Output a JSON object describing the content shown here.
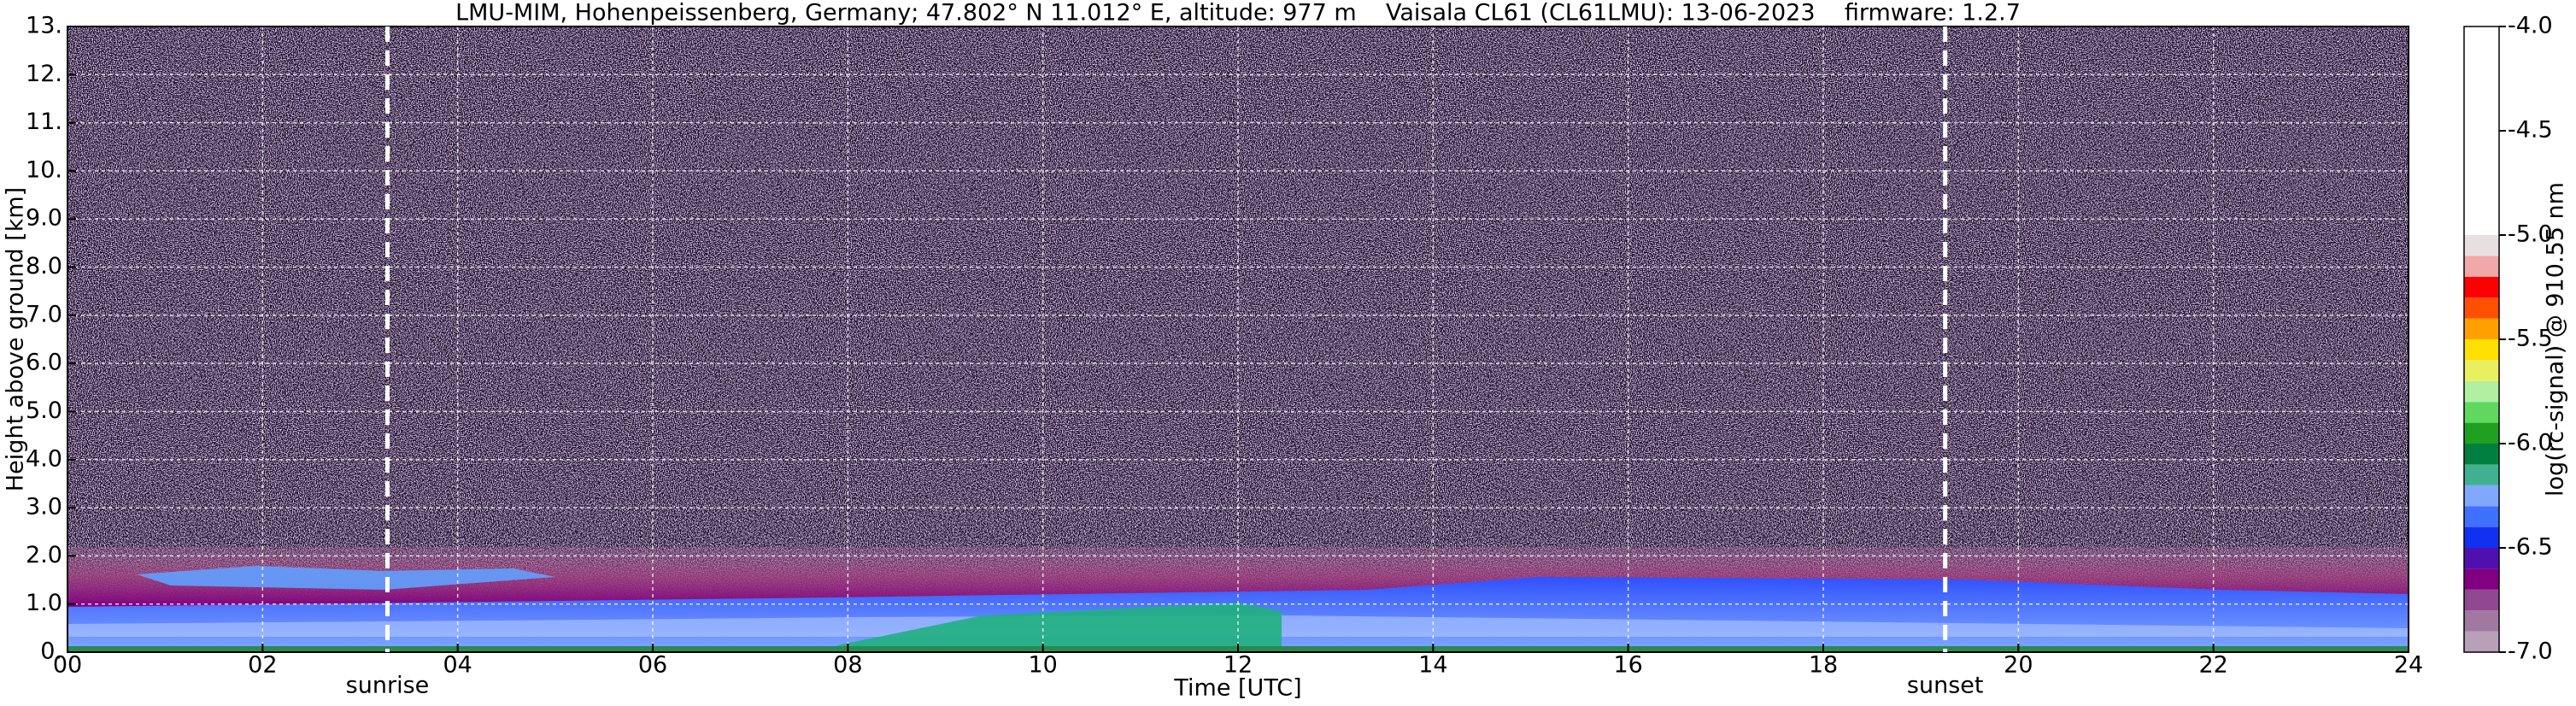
{
  "chart_data": {
    "type": "heatmap",
    "title": "LMU-MIM, Hohenpeissenberg, Germany; 47.802° N 11.012° E, altitude: 977 m    Vaisala CL61 (CL61LMU): 13-06-2023    firmware: 1.2.7",
    "x_label": "Time [UTC]",
    "y_label": "Height above ground [km]",
    "xlim": [
      0,
      24
    ],
    "xticks": [
      {
        "value": 0,
        "label": "00"
      },
      {
        "value": 2,
        "label": "02"
      },
      {
        "value": 4,
        "label": "04"
      },
      {
        "value": 6,
        "label": "06"
      },
      {
        "value": 8,
        "label": "08"
      },
      {
        "value": 10,
        "label": "10"
      },
      {
        "value": 12,
        "label": "12"
      },
      {
        "value": 14,
        "label": "14"
      },
      {
        "value": 16,
        "label": "16"
      },
      {
        "value": 18,
        "label": "18"
      },
      {
        "value": 20,
        "label": "20"
      },
      {
        "value": 22,
        "label": "22"
      },
      {
        "value": 24,
        "label": "24"
      }
    ],
    "ylim": [
      0,
      13
    ],
    "yticks": [
      {
        "value": 0,
        "label": "0."
      },
      {
        "value": 1,
        "label": "1.0"
      },
      {
        "value": 2,
        "label": "2.0"
      },
      {
        "value": 3,
        "label": "3.0"
      },
      {
        "value": 4,
        "label": "4.0"
      },
      {
        "value": 5,
        "label": "5.0"
      },
      {
        "value": 6,
        "label": "6.0"
      },
      {
        "value": 7,
        "label": "7.0"
      },
      {
        "value": 8,
        "label": "8.0"
      },
      {
        "value": 9,
        "label": "9.0"
      },
      {
        "value": 10,
        "label": "10."
      },
      {
        "value": 11,
        "label": "11."
      },
      {
        "value": 12,
        "label": "12."
      },
      {
        "value": 13,
        "label": "13."
      }
    ],
    "grid": true,
    "annotations": [
      {
        "text": "sunrise",
        "x": 3.28
      },
      {
        "text": "sunset",
        "x": 19.25
      }
    ],
    "colorbar": {
      "label": "log(rc-signal) @ 910.55 nm",
      "lim": [
        -7,
        -4
      ],
      "ticks": [
        {
          "value": -7,
          "label": "-7.0"
        },
        {
          "value": -6.5,
          "label": "-6.5"
        },
        {
          "value": -6,
          "label": "-6.0"
        },
        {
          "value": -5.5,
          "label": "-5.5"
        },
        {
          "value": -5,
          "label": "-5.0"
        },
        {
          "value": -4.5,
          "label": "-4.5"
        },
        {
          "value": -4,
          "label": "-4.0"
        }
      ],
      "bounds": [
        -7,
        -6.9,
        -6.8,
        -6.7,
        -6.6,
        -6.5,
        -6.4,
        -6.3,
        -6.2,
        -6.1,
        -6,
        -5.9,
        -5.8,
        -5.7,
        -5.6,
        -5.5,
        -5.4,
        -5.3,
        -5.2,
        -5.1,
        -5,
        -4
      ],
      "colors": [
        "#b8a0b8",
        "#a078a0",
        "#904890",
        "#800080",
        "#5010b0",
        "#1030f0",
        "#4070ff",
        "#80a8ff",
        "#40b090",
        "#008040",
        "#20a020",
        "#60d860",
        "#b0f0a0",
        "#e8f060",
        "#ffe000",
        "#ffa000",
        "#ff5000",
        "#ff0000",
        "#f0a8a8",
        "#e8e0e0",
        "#ffffff"
      ]
    }
  }
}
